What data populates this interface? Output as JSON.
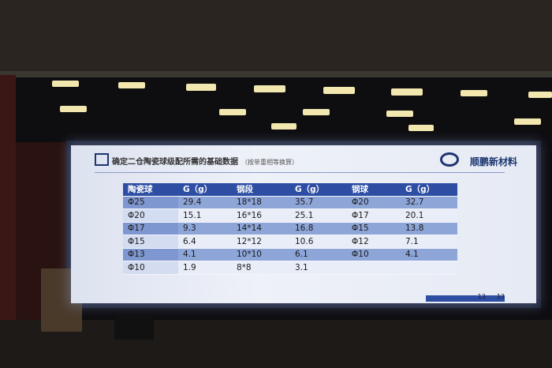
{
  "slide": {
    "title": "确定二仓陶瓷球级配所需的基础数据",
    "subtitle": "（按单重相等换算）",
    "logo": "顺鹏新材料",
    "table": {
      "header": [
        "陶瓷球",
        "G（g）",
        "钢段",
        "G（g）",
        "钢球",
        "G（g）"
      ],
      "rows": [
        [
          "Φ25",
          29.4,
          "18*18",
          35.7,
          "Φ20",
          32.7
        ],
        [
          "Φ20",
          15.1,
          "16*16",
          25.1,
          "Φ17",
          20.1
        ],
        [
          "Φ17",
          9.3,
          "14*14",
          16.8,
          "Φ15",
          13.8
        ],
        [
          "Φ15",
          6.4,
          "12*12",
          10.6,
          "Φ12",
          7.1
        ],
        [
          "Φ13",
          4.1,
          "10*10",
          6.1,
          "Φ10",
          4.1
        ],
        [
          "Φ10",
          1.9,
          "8*8",
          3.1
        ]
      ]
    },
    "page_numbers": [
      "13",
      "13"
    ]
  }
}
